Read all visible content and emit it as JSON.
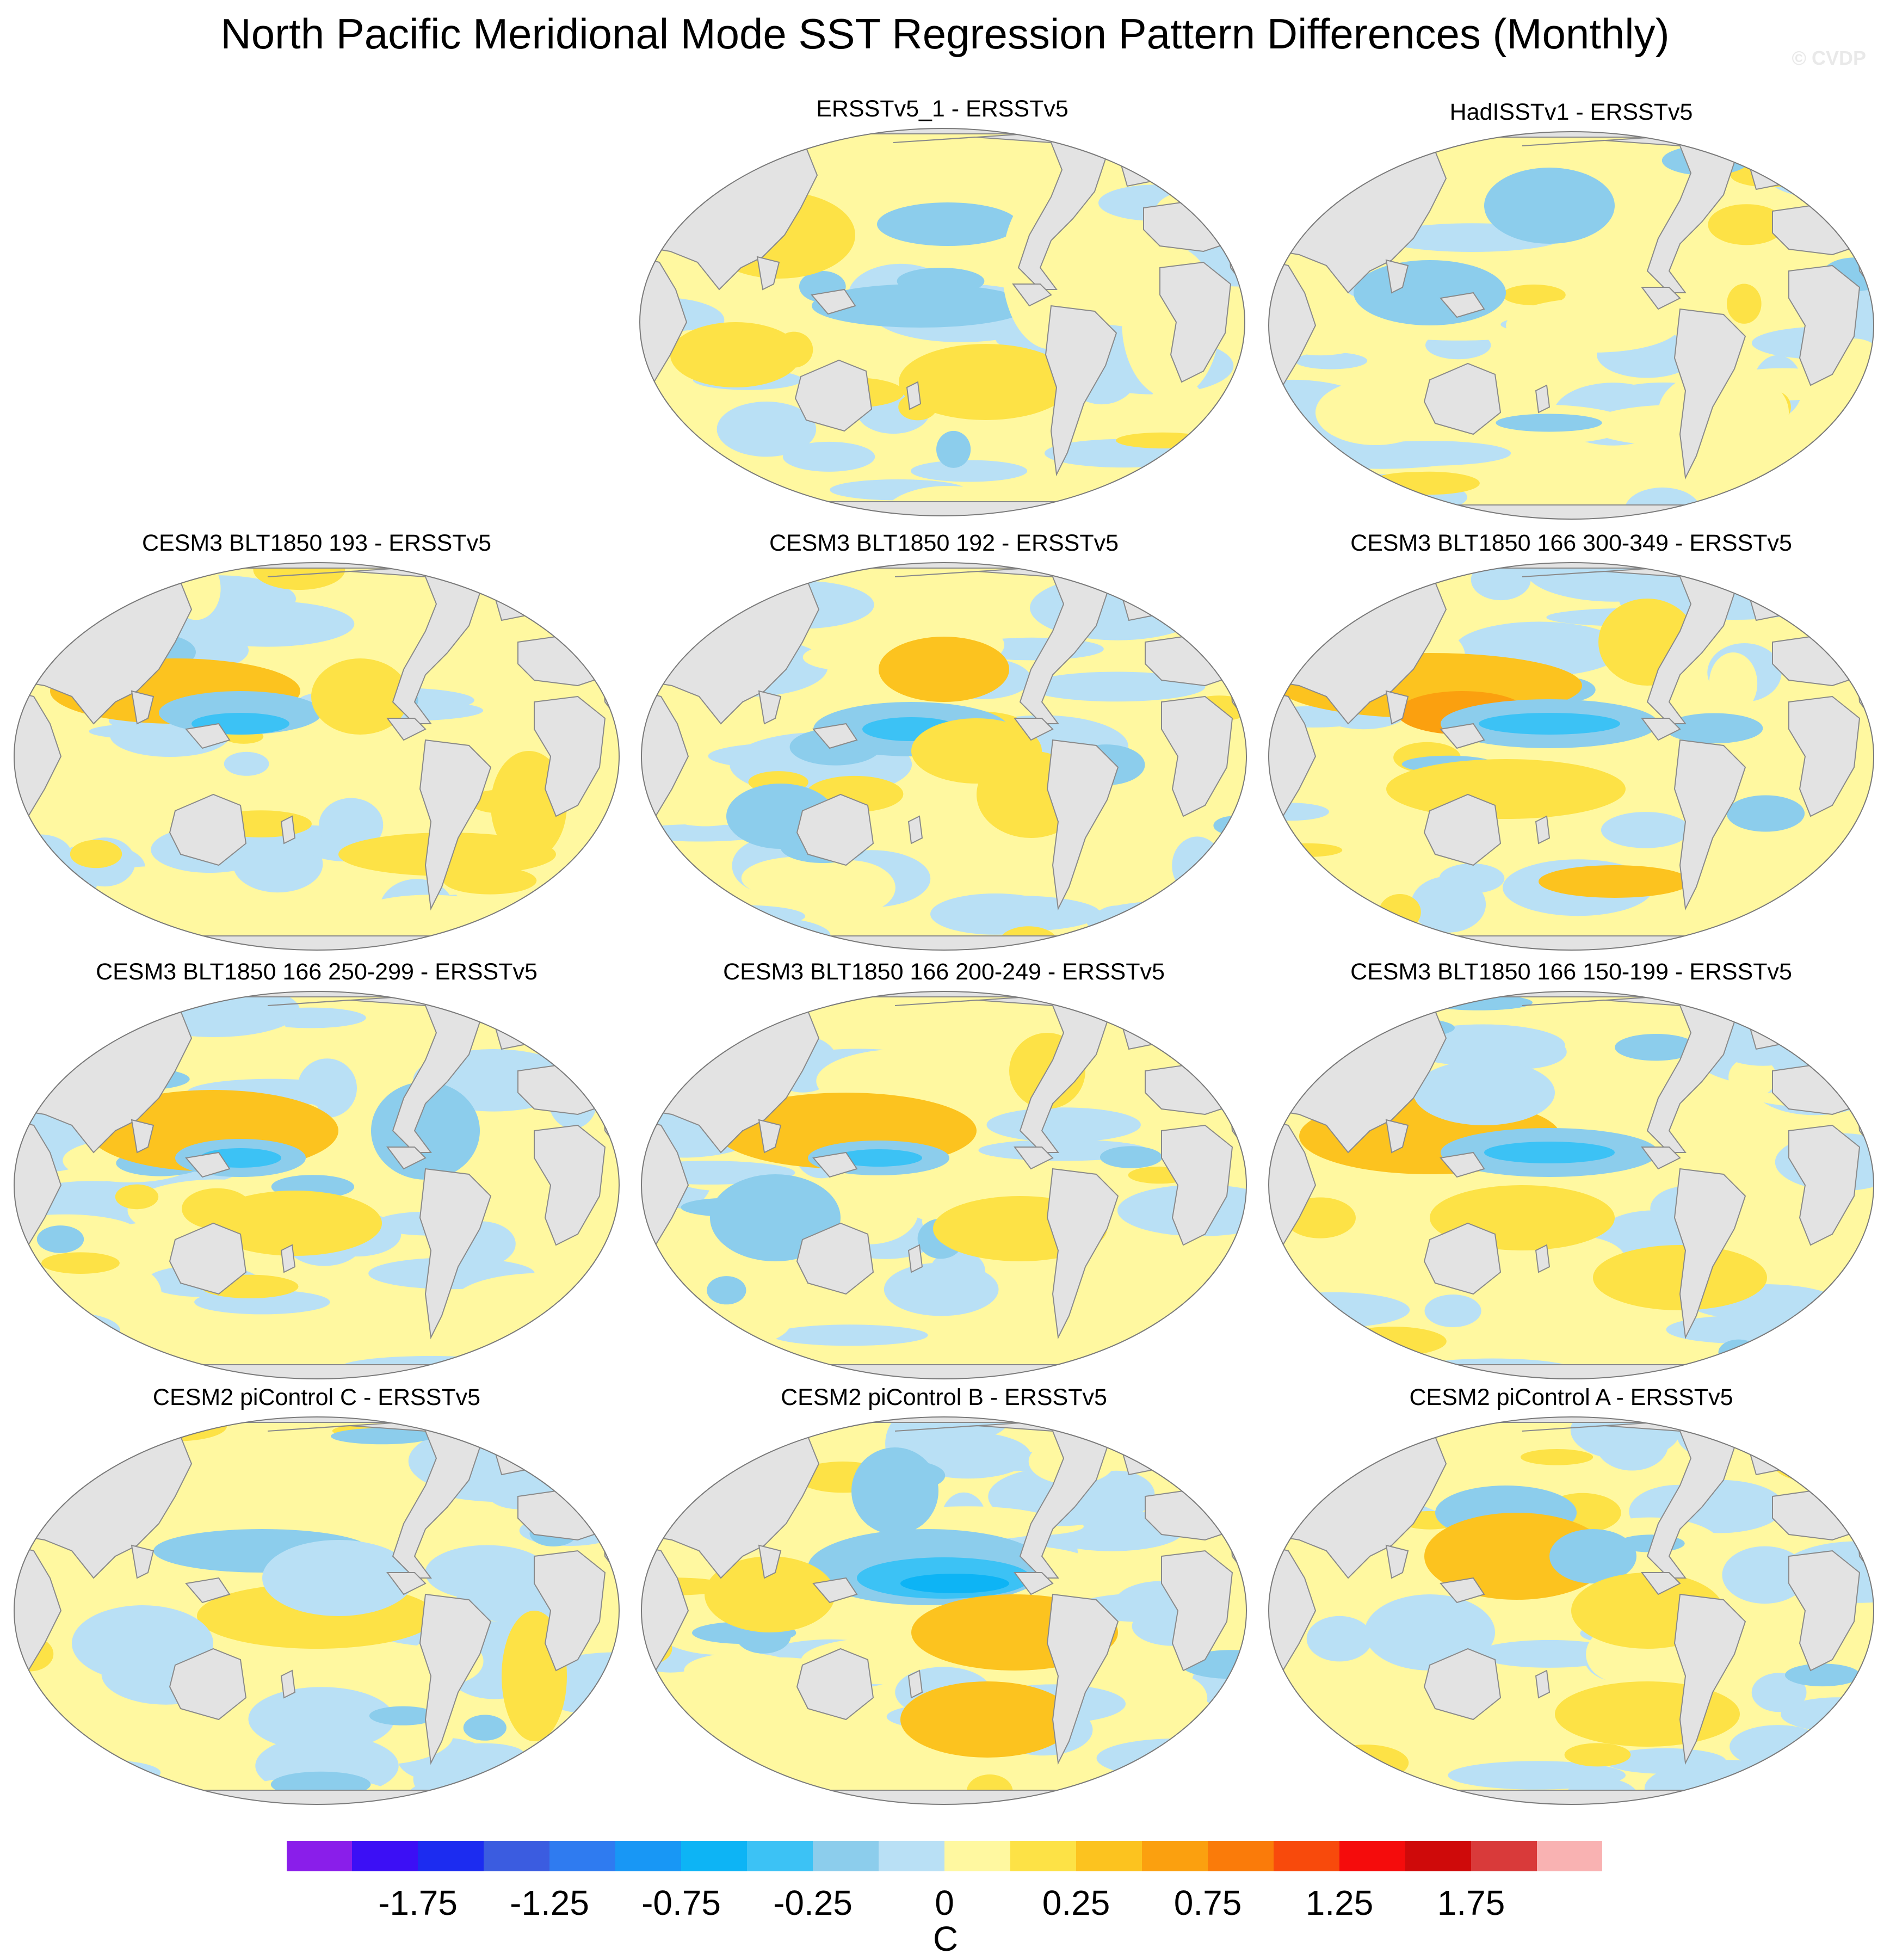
{
  "title": "North Pacific Meridional Mode SST Regression Pattern Differences (Monthly)",
  "watermark": "© CVDP",
  "panels": [
    {
      "label": "ERSSTv5_1 - ERSSTv5"
    },
    {
      "label": "HadISSTv1 - ERSSTv5"
    },
    {
      "label": "CESM3 BLT1850 193 - ERSSTv5"
    },
    {
      "label": "CESM3 BLT1850 192 - ERSSTv5"
    },
    {
      "label": "CESM3 BLT1850 166 300-349 - ERSSTv5"
    },
    {
      "label": "CESM3 BLT1850 166 250-299 - ERSSTv5"
    },
    {
      "label": "CESM3 BLT1850 166 200-249 - ERSSTv5"
    },
    {
      "label": "CESM3 BLT1850 166 150-199 - ERSSTv5"
    },
    {
      "label": "CESM2 piControl C - ERSSTv5"
    },
    {
      "label": "CESM2 piControl B - ERSSTv5"
    },
    {
      "label": "CESM2 piControl A - ERSSTv5"
    }
  ],
  "colorbar": {
    "unit": "C",
    "tick_labels": [
      "-1.75",
      "-1.25",
      "-0.75",
      "-0.25",
      "0",
      "0.25",
      "0.75",
      "1.25",
      "1.75"
    ],
    "colors": [
      "#8a1eea",
      "#3c0ff5",
      "#1c2cf0",
      "#3b5ce0",
      "#2f7bf0",
      "#1897f5",
      "#0db4f5",
      "#3cc2f5",
      "#8ccdec",
      "#b9e0f5",
      "#fff8a0",
      "#fde246",
      "#fcc31f",
      "#fba00f",
      "#fa7b0a",
      "#f84a0c",
      "#f50c0c",
      "#cf0a0a",
      "#d93a3a",
      "#f9b2b2"
    ]
  }
}
